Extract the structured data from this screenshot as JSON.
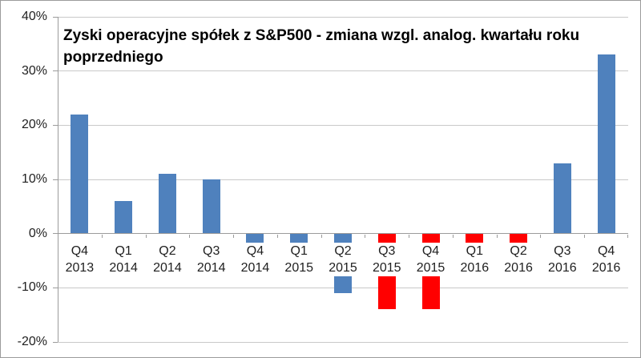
{
  "chart_data": {
    "type": "bar",
    "title": "Zyski operacyjne spółek z S&P500 - zmiana wzgl. analog. kwartału roku poprzedniego",
    "categories": [
      "Q4 2013",
      "Q1 2014",
      "Q2 2014",
      "Q3 2014",
      "Q4 2014",
      "Q1 2015",
      "Q2 2015",
      "Q3 2015",
      "Q4 2015",
      "Q1 2016",
      "Q2 2016",
      "Q3 2016",
      "Q4 2016"
    ],
    "values": [
      22,
      6,
      11,
      10,
      -2,
      -2,
      -11,
      -14,
      -14,
      -2,
      -2,
      13,
      33
    ],
    "bar_colors": [
      "#4f81bd",
      "#4f81bd",
      "#4f81bd",
      "#4f81bd",
      "#4f81bd",
      "#4f81bd",
      "#4f81bd",
      "#ff0000",
      "#ff0000",
      "#ff0000",
      "#ff0000",
      "#4f81bd",
      "#4f81bd"
    ],
    "xlabel": "",
    "ylabel": "",
    "ylim": [
      -20,
      40
    ],
    "ytick_step": 10,
    "ytick_labels": [
      "40%",
      "30%",
      "20%",
      "10%",
      "0%",
      "-10%",
      "-20%"
    ],
    "grid": true,
    "legend": "none",
    "colors": {
      "default_bar": "#4f81bd",
      "highlight_bar": "#ff0000",
      "gridline": "#c9c9c9",
      "axis": "#9b9b9b",
      "text": "#1f1f1f",
      "background": "#ffffff"
    }
  }
}
